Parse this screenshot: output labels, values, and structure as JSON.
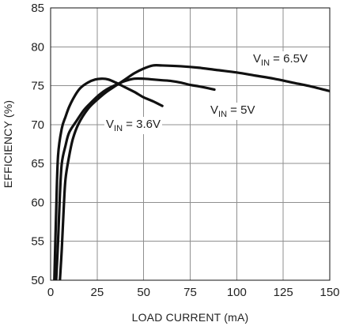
{
  "chart_data": {
    "type": "line",
    "title": "",
    "xlabel": "LOAD CURRENT (mA)",
    "ylabel": "EFFICIENCY (%)",
    "xlim": [
      0,
      150
    ],
    "ylim": [
      50,
      85
    ],
    "x_ticks": [
      0,
      25,
      50,
      75,
      100,
      125,
      150
    ],
    "y_ticks": [
      50,
      55,
      60,
      65,
      70,
      75,
      80,
      85
    ],
    "grid": true,
    "legend": "none",
    "series": [
      {
        "name": "V_IN = 3.6V",
        "x": [
          2.0,
          3.0,
          4.0,
          6.0,
          8.0,
          10.0,
          13.0,
          16.0,
          20.0,
          24.0,
          28.0,
          31.0,
          35.0,
          40.0,
          45.0,
          50.0,
          55.0,
          60.0
        ],
        "y": [
          50.0,
          59.0,
          66.0,
          69.5,
          71.0,
          72.3,
          73.7,
          74.7,
          75.4,
          75.8,
          75.9,
          75.8,
          75.4,
          74.8,
          74.2,
          73.5,
          73.0,
          72.4
        ]
      },
      {
        "name": "V_IN = 5V",
        "x": [
          3.0,
          4.0,
          5.0,
          6.0,
          8.0,
          10.0,
          14.0,
          18.0,
          22.0,
          26.0,
          30.0,
          35.0,
          40.0,
          45.0,
          50.0,
          55.0,
          60.0,
          65.0,
          70.0,
          75.0,
          80.0,
          88.0
        ],
        "y": [
          50.0,
          55.0,
          61.0,
          65.0,
          67.3,
          69.0,
          70.5,
          71.9,
          72.9,
          73.8,
          74.5,
          75.1,
          75.6,
          75.9,
          75.9,
          75.8,
          75.7,
          75.6,
          75.4,
          75.1,
          74.9,
          74.5
        ]
      },
      {
        "name": "V_IN = 6.5V",
        "x": [
          5.0,
          6.0,
          7.0,
          8.0,
          10.0,
          12.0,
          15.0,
          20.0,
          25.0,
          30.0,
          35.0,
          40.0,
          45.0,
          50.0,
          55.0,
          60.0,
          70.0,
          80.0,
          90.0,
          100.0,
          110.0,
          120.0,
          130.0,
          140.0,
          150.0
        ],
        "y": [
          50.0,
          54.0,
          59.0,
          63.0,
          66.0,
          68.2,
          70.1,
          72.0,
          73.2,
          74.2,
          75.0,
          75.8,
          76.6,
          77.2,
          77.6,
          77.6,
          77.5,
          77.3,
          77.0,
          76.7,
          76.3,
          75.9,
          75.4,
          74.9,
          74.3
        ]
      }
    ],
    "annotations": [
      {
        "main": "V",
        "sub": "IN",
        "rest": " = 6.5V"
      },
      {
        "main": "V",
        "sub": "IN",
        "rest": " = 5V"
      },
      {
        "main": "V",
        "sub": "IN",
        "rest": " = 3.6V"
      }
    ]
  }
}
